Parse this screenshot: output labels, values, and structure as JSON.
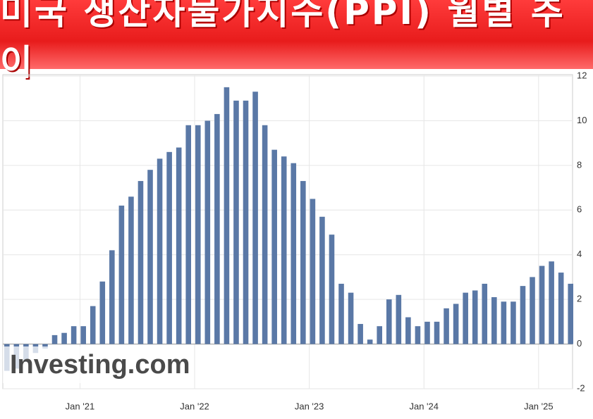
{
  "chart_data": {
    "type": "bar",
    "title": "미국 생산자물가지수(PPI) 월별 추이",
    "logo": "Investing.com",
    "categories": [
      null,
      null,
      null,
      null,
      null,
      null,
      null,
      null,
      null,
      "Jan '21",
      null,
      null,
      null,
      null,
      null,
      null,
      null,
      null,
      null,
      null,
      null,
      "Jan '22",
      null,
      null,
      null,
      null,
      null,
      null,
      null,
      null,
      null,
      null,
      null,
      "Jan '23",
      null,
      null,
      null,
      null,
      null,
      null,
      null,
      null,
      null,
      null,
      null,
      "Jan '24",
      null,
      null,
      null,
      null,
      null,
      null,
      null,
      null,
      null,
      null,
      null,
      "Jan '25",
      null,
      null
    ],
    "values": [
      -1.2,
      -1.1,
      -0.8,
      -0.4,
      -0.2,
      0.4,
      0.5,
      0.8,
      0.8,
      1.7,
      2.8,
      4.2,
      6.2,
      6.6,
      7.3,
      7.8,
      8.3,
      8.6,
      8.8,
      9.8,
      9.8,
      10.0,
      10.3,
      11.5,
      10.9,
      10.9,
      11.3,
      9.8,
      8.7,
      8.4,
      8.1,
      7.3,
      6.5,
      5.7,
      4.9,
      2.7,
      2.3,
      0.9,
      0.2,
      0.8,
      2.0,
      2.2,
      1.2,
      0.8,
      1.0,
      1.0,
      1.6,
      1.8,
      2.3,
      2.4,
      2.7,
      2.1,
      1.9,
      1.9,
      2.6,
      3.0,
      3.5,
      3.7,
      3.2,
      2.7
    ],
    "color": "#5a78a6",
    "ylim": [
      -2,
      12
    ],
    "yticks": [
      -2,
      0,
      2,
      4,
      6,
      8,
      10,
      12
    ],
    "grid": true
  }
}
